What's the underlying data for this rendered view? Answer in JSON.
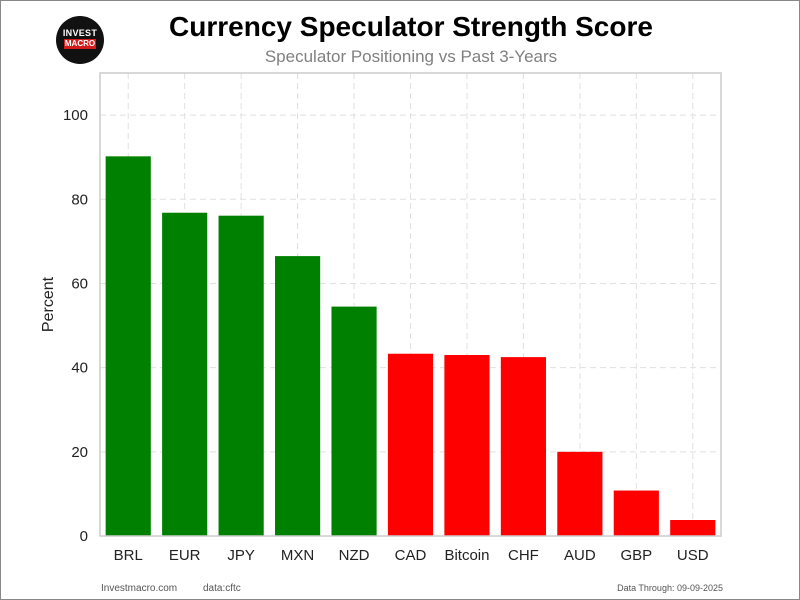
{
  "header": {
    "logo_line1": "INVEST",
    "logo_line2": "MACRO"
  },
  "chart_data": {
    "type": "bar",
    "title": "Currency Speculator Strength Score",
    "subtitle": "Speculator Positioning vs Past 3-Years",
    "xlabel": "",
    "ylabel": "Percent",
    "categories": [
      "BRL",
      "EUR",
      "JPY",
      "MXN",
      "NZD",
      "CAD",
      "Bitcoin",
      "CHF",
      "AUD",
      "GBP",
      "USD"
    ],
    "values": [
      90.2,
      76.8,
      76.1,
      66.5,
      54.5,
      43.3,
      43.0,
      42.5,
      20.0,
      10.8,
      3.8
    ],
    "colors": [
      "#008000",
      "#008000",
      "#008000",
      "#008000",
      "#008000",
      "#ff0000",
      "#ff0000",
      "#ff0000",
      "#ff0000",
      "#ff0000",
      "#ff0000"
    ],
    "ylim": [
      0,
      110
    ],
    "yticks": [
      0,
      20,
      40,
      60,
      80,
      100
    ],
    "grid": true,
    "legend": "none"
  },
  "footer": {
    "site": "Investmacro.com",
    "source": "data:cftc",
    "date_note": "Data Through: 09-09-2025"
  },
  "colors": {
    "positive": "#008000",
    "negative": "#ff0000",
    "grid": "#e0e0e0",
    "axis_frame": "#cccccc",
    "subtitle": "#808080"
  }
}
